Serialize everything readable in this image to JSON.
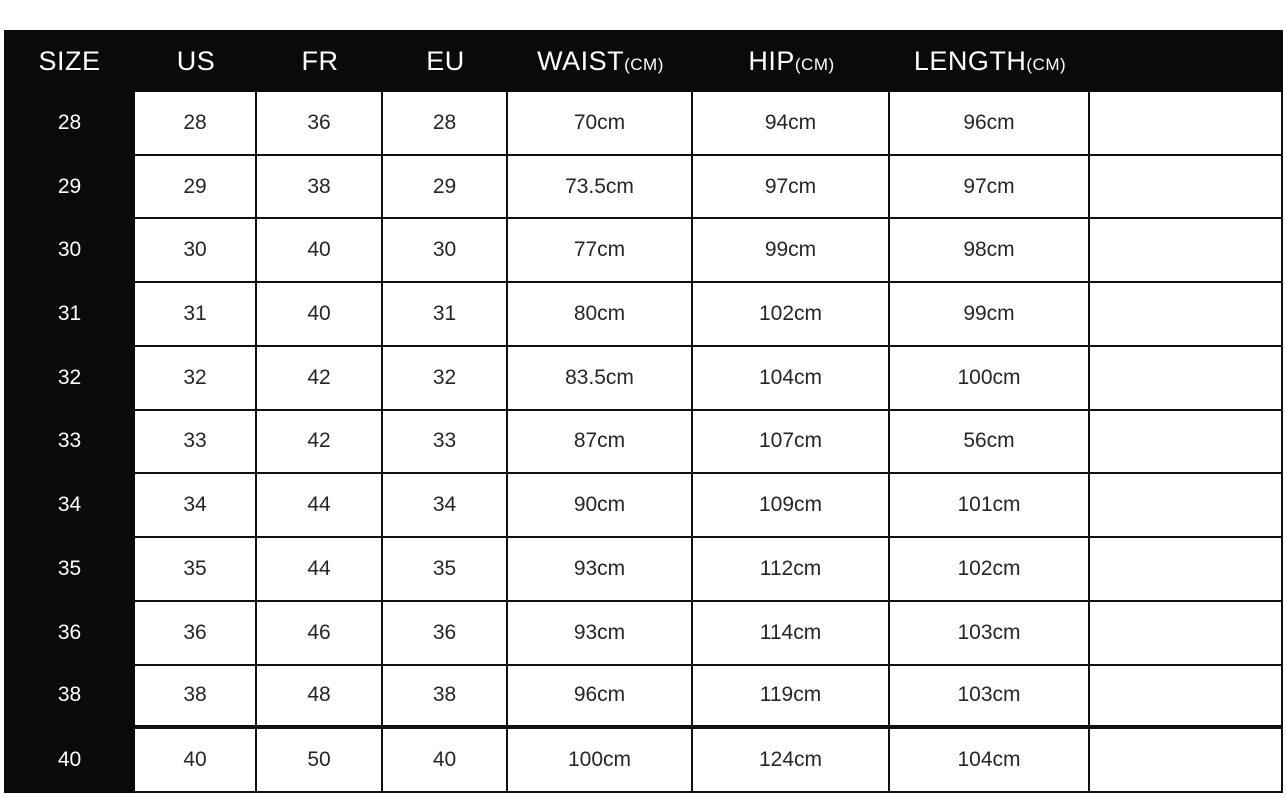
{
  "colors": {
    "page_bg": "#ffffff",
    "header_bg": "#0a0a0a",
    "header_text": "#ffffff",
    "cell_bg": "#ffffff",
    "cell_text": "#262626",
    "border": "#111111"
  },
  "chart_data": {
    "type": "table",
    "columns": [
      {
        "label": "SIZE",
        "unit": ""
      },
      {
        "label": "US",
        "unit": ""
      },
      {
        "label": "FR",
        "unit": ""
      },
      {
        "label": "EU",
        "unit": ""
      },
      {
        "label": "WAIST",
        "unit": "(CM)"
      },
      {
        "label": "HIP",
        "unit": "(CM)"
      },
      {
        "label": "LENGTH",
        "unit": "(CM)"
      },
      {
        "label": "",
        "unit": ""
      }
    ],
    "rows": [
      {
        "size": "28",
        "us": "28",
        "fr": "36",
        "eu": "28",
        "waist": "70cm",
        "hip": "94cm",
        "length": "96cm",
        "extra": ""
      },
      {
        "size": "29",
        "us": "29",
        "fr": "38",
        "eu": "29",
        "waist": "73.5cm",
        "hip": "97cm",
        "length": "97cm",
        "extra": ""
      },
      {
        "size": "30",
        "us": "30",
        "fr": "40",
        "eu": "30",
        "waist": "77cm",
        "hip": "99cm",
        "length": "98cm",
        "extra": ""
      },
      {
        "size": "31",
        "us": "31",
        "fr": "40",
        "eu": "31",
        "waist": "80cm",
        "hip": "102cm",
        "length": "99cm",
        "extra": ""
      },
      {
        "size": "32",
        "us": "32",
        "fr": "42",
        "eu": "32",
        "waist": "83.5cm",
        "hip": "104cm",
        "length": "100cm",
        "extra": ""
      },
      {
        "size": "33",
        "us": "33",
        "fr": "42",
        "eu": "33",
        "waist": "87cm",
        "hip": "107cm",
        "length": "56cm",
        "extra": ""
      },
      {
        "size": "34",
        "us": "34",
        "fr": "44",
        "eu": "34",
        "waist": "90cm",
        "hip": "109cm",
        "length": "101cm",
        "extra": ""
      },
      {
        "size": "35",
        "us": "35",
        "fr": "44",
        "eu": "35",
        "waist": "93cm",
        "hip": "112cm",
        "length": "102cm",
        "extra": ""
      },
      {
        "size": "36",
        "us": "36",
        "fr": "46",
        "eu": "36",
        "waist": "93cm",
        "hip": "114cm",
        "length": "103cm",
        "extra": ""
      },
      {
        "size": "38",
        "us": "38",
        "fr": "48",
        "eu": "38",
        "waist": "96cm",
        "hip": "119cm",
        "length": "103cm",
        "extra": ""
      },
      {
        "size": "40",
        "us": "40",
        "fr": "50",
        "eu": "40",
        "waist": "100cm",
        "hip": "124cm",
        "length": "104cm",
        "extra": ""
      }
    ],
    "layout": {
      "header_position": "top",
      "row_header_column": "SIZE",
      "grid": "on",
      "thick_rule_above_last_row": true
    }
  }
}
